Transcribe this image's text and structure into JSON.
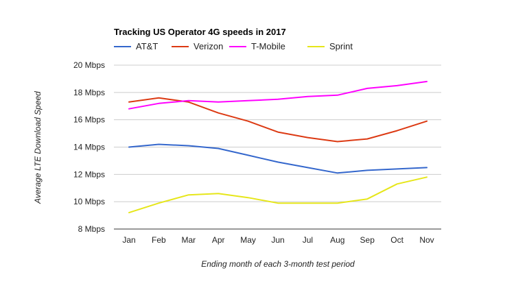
{
  "chart_data": {
    "type": "line",
    "title": "Tracking US Operator 4G speeds in 2017",
    "xlabel": "Ending month of each 3-month test period",
    "ylabel": "Average LTE Download Speed",
    "categories": [
      "Jan",
      "Feb",
      "Mar",
      "Apr",
      "May",
      "Jun",
      "Jul",
      "Aug",
      "Sep",
      "Oct",
      "Nov"
    ],
    "ylim": [
      8,
      20
    ],
    "yticks": [
      8,
      10,
      12,
      14,
      16,
      18,
      20
    ],
    "ytick_suffix": " Mbps",
    "ytick_labels": [
      "8 Mbps",
      "10 Mbps",
      "12 Mbps",
      "14 Mbps",
      "16 Mbps",
      "18 Mbps",
      "20 Mbps"
    ],
    "grid": true,
    "legend_position": "top-left",
    "series": [
      {
        "name": "AT&T",
        "color": "#3366cc",
        "values": [
          14.0,
          14.2,
          14.1,
          13.9,
          13.4,
          12.9,
          12.5,
          12.1,
          12.3,
          12.4,
          12.5
        ]
      },
      {
        "name": "Verizon",
        "color": "#dc3912",
        "values": [
          17.3,
          17.6,
          17.3,
          16.5,
          15.9,
          15.1,
          14.7,
          14.4,
          14.6,
          15.2,
          15.9
        ]
      },
      {
        "name": "T-Mobile",
        "color": "#ff00ff",
        "values": [
          16.8,
          17.2,
          17.4,
          17.3,
          17.4,
          17.5,
          17.7,
          17.8,
          18.3,
          18.5,
          18.8
        ]
      },
      {
        "name": "Sprint",
        "color": "#e6e619",
        "values": [
          9.2,
          9.9,
          10.5,
          10.6,
          10.3,
          9.9,
          9.9,
          9.9,
          10.2,
          11.3,
          11.8
        ]
      }
    ]
  }
}
